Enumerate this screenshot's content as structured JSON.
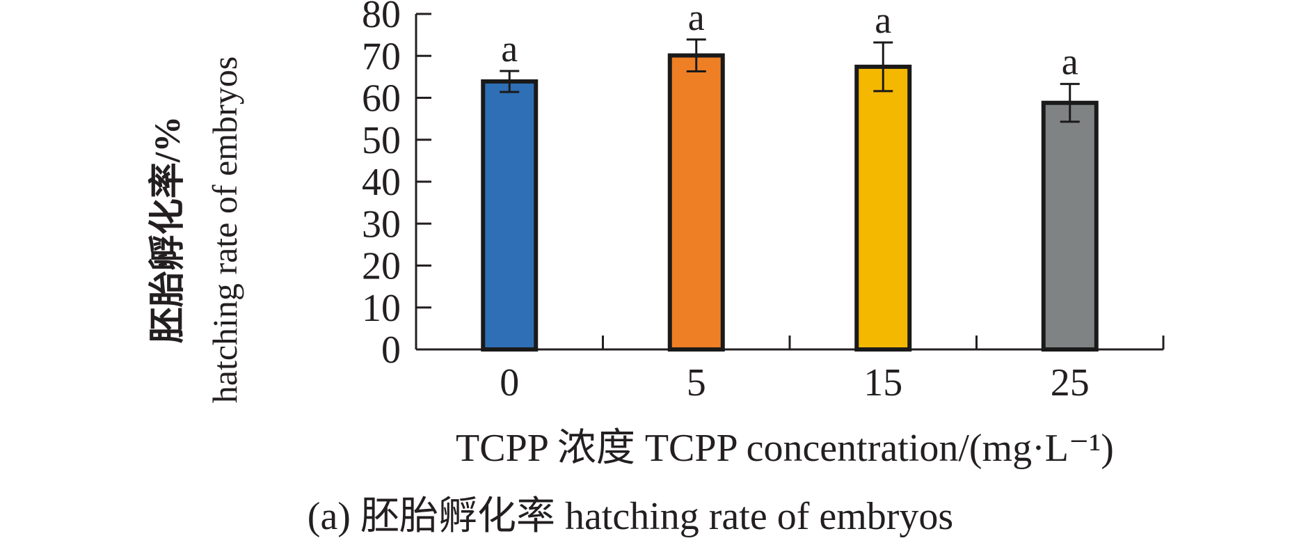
{
  "chart_data": {
    "type": "bar",
    "categories": [
      "0",
      "5",
      "15",
      "25"
    ],
    "values": [
      63.9,
      70.1,
      67.4,
      58.8
    ],
    "errors": [
      2.5,
      3.8,
      5.8,
      4.5
    ],
    "significance": [
      "a",
      "a",
      "a",
      "a"
    ],
    "colors": [
      "#2f6fb5",
      "#ee7f25",
      "#f5b800",
      "#7f8384"
    ],
    "ylim": [
      0,
      80
    ],
    "yticks": [
      "0",
      "10",
      "20",
      "30",
      "40",
      "50",
      "60",
      "70",
      "80"
    ],
    "ylabel_cn": "胚胎孵化率/%",
    "ylabel_en": "hatching rate of embryos",
    "xlabel": "TCPP 浓度 TCPP concentration/(mg·L⁻¹)",
    "caption": "(a) 胚胎孵化率 hatching rate of embryos"
  }
}
